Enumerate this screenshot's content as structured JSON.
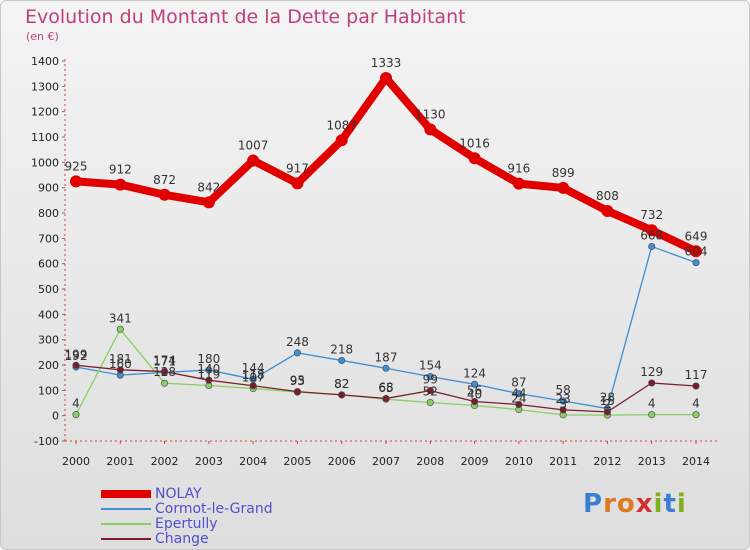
{
  "title": "Evolution du Montant de la Dette par Habitant",
  "subtitle": "(en €)",
  "logo": {
    "letters": [
      "P",
      "r",
      "o",
      "x",
      "i",
      "t",
      "i"
    ],
    "colors": [
      "#3a7fd0",
      "#e07a20",
      "#e07a20",
      "#d03030",
      "#80b020",
      "#3a7fd0",
      "#80b020"
    ]
  },
  "chart_data": {
    "type": "line",
    "x": [
      "2000",
      "2001",
      "2002",
      "2003",
      "2004",
      "2005",
      "2006",
      "2007",
      "2008",
      "2009",
      "2010",
      "2011",
      "2012",
      "2013",
      "2014"
    ],
    "ylim": [
      -100,
      1400
    ],
    "yticks": [
      "-100",
      "0",
      "100",
      "200",
      "300",
      "400",
      "500",
      "600",
      "700",
      "800",
      "900",
      "1000",
      "1100",
      "1200",
      "1300",
      "1400"
    ],
    "grid": false,
    "legend_position": "bottom-left",
    "series": [
      {
        "name": "NOLAY",
        "color": "#e00000",
        "values": [
          925,
          912,
          872,
          842,
          1007,
          917,
          1087,
          1333,
          1130,
          1016,
          916,
          899,
          808,
          732,
          649
        ],
        "labels": [
          "925",
          "912",
          "872",
          "842",
          "1007",
          "917",
          "1087",
          "1333",
          "1130",
          "1016",
          "916",
          "899",
          "808",
          "732",
          "649"
        ]
      },
      {
        "name": "Cormot-le-Grand",
        "color": "#3f8ed4",
        "values": [
          192,
          160,
          171,
          180,
          144,
          248,
          218,
          187,
          154,
          124,
          87,
          58,
          28,
          668,
          604
        ],
        "labels": [
          "192",
          "160",
          "171",
          "180",
          "144",
          "248",
          "218",
          "187",
          "154",
          "124",
          "87",
          "58",
          "28",
          "668",
          "604"
        ]
      },
      {
        "name": "Epertully",
        "color": "#88d060",
        "values": [
          4,
          341,
          128,
          119,
          107,
          93,
          82,
          65,
          52,
          40,
          24,
          3,
          2,
          4,
          4
        ],
        "labels": [
          "4",
          "341",
          "128",
          "119",
          "107",
          "93",
          "82",
          "65",
          "52",
          "40",
          "24",
          "3",
          "2",
          "4",
          "4"
        ]
      },
      {
        "name": "Change",
        "color": "#7a1f2a",
        "values": [
          199,
          181,
          174,
          140,
          118,
          95,
          82,
          68,
          99,
          56,
          44,
          23,
          15,
          129,
          117
        ],
        "labels": [
          "199",
          "181",
          "174",
          "140",
          "118",
          "95",
          "82",
          "68",
          "99",
          "56",
          "44",
          "23",
          "15",
          "129",
          "117"
        ]
      }
    ]
  }
}
